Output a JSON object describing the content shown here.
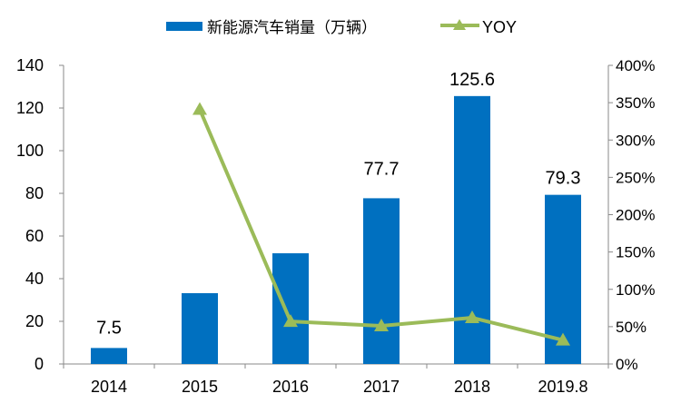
{
  "chart_data": {
    "type": "bar+line",
    "categories": [
      "2014",
      "2015",
      "2016",
      "2017",
      "2018",
      "2019.8"
    ],
    "series": [
      {
        "name": "新能源汽车销量（万辆）",
        "type": "bar",
        "axis": "left",
        "color": "#0070C0",
        "values": [
          7.5,
          33.2,
          51.9,
          77.7,
          125.6,
          79.3
        ],
        "data_labels": [
          "7.5",
          "",
          "",
          "77.7",
          "125.6",
          "79.3"
        ]
      },
      {
        "name": "YOY",
        "type": "line",
        "axis": "right",
        "color": "#9BBB59",
        "marker": "triangle",
        "values": [
          null,
          341,
          57,
          51,
          62,
          32
        ]
      }
    ],
    "left_axis": {
      "ylim": [
        0,
        140
      ],
      "ticks": [
        "0",
        "20",
        "40",
        "60",
        "80",
        "100",
        "120",
        "140"
      ]
    },
    "right_axis": {
      "ylim": [
        0,
        400
      ],
      "ticks": [
        "0%",
        "50%",
        "100%",
        "150%",
        "200%",
        "250%",
        "300%",
        "350%",
        "400%"
      ]
    },
    "legend": {
      "placement": "top-center",
      "entries": [
        "新能源汽车销量（万辆）",
        "YOY"
      ]
    },
    "grid": false
  }
}
